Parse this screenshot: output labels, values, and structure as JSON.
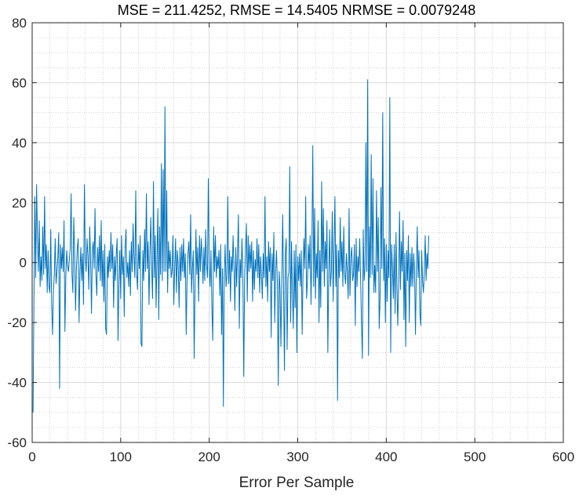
{
  "chart_data": {
    "type": "line",
    "title": "MSE = 211.4252, RMSE = 14.5405 NRMSE = 0.0079248",
    "xlabel": "Error Per Sample",
    "ylabel": "",
    "xlim": [
      0,
      600
    ],
    "ylim": [
      -60,
      80
    ],
    "grid": true,
    "minor_grid": true,
    "legend": "none",
    "x_ticks": [
      "0",
      "100",
      "200",
      "300",
      "400",
      "500",
      "600"
    ],
    "y_ticks": [
      "-60",
      "-40",
      "-20",
      "0",
      "20",
      "40",
      "60",
      "80"
    ],
    "series": [
      {
        "color": "#0072BD",
        "x_start": 1,
        "x_step": 1,
        "values": [
          -50,
          -12,
          22,
          -5,
          26,
          8,
          -3,
          14,
          -8,
          2,
          -6,
          12,
          -4,
          22,
          -2,
          6,
          -10,
          4,
          -8,
          -10,
          11,
          -14,
          -24,
          -10,
          -4,
          8,
          -7,
          -3,
          2,
          10,
          -42,
          6,
          -2,
          5,
          -3,
          14,
          -23,
          -5,
          4,
          -1,
          -3,
          1,
          5,
          23,
          -4,
          -10,
          15,
          3,
          -16,
          -2,
          5,
          8,
          -20,
          -3,
          5,
          -6,
          3,
          -14,
          26,
          2,
          -3,
          8,
          2,
          -9,
          12,
          1,
          -17,
          4,
          7,
          -2,
          18,
          -4,
          -11,
          5,
          -3,
          9,
          -6,
          14,
          -8,
          4,
          -13,
          6,
          -22,
          -24,
          2,
          -5,
          4,
          -3,
          10,
          -2,
          6,
          -15,
          2,
          -6,
          3,
          8,
          -26,
          -7,
          4,
          -12,
          9,
          -4,
          2,
          -18,
          5,
          11,
          -5,
          0,
          -8,
          4,
          -11,
          7,
          -3,
          13,
          2,
          -5,
          24,
          -3,
          -9,
          6,
          -2,
          9,
          -27,
          -28,
          4,
          -6,
          11,
          -3,
          23,
          -2,
          7,
          -14,
          3,
          15,
          -2,
          -12,
          27,
          -5,
          9,
          -15,
          1,
          18,
          -19,
          12,
          -4,
          33,
          -6,
          31,
          -3,
          52,
          -3,
          24,
          -10,
          7,
          -2,
          4,
          -5,
          -3,
          9,
          -14,
          -2,
          8,
          -10,
          4,
          -1,
          -15,
          5,
          -6,
          6,
          -3,
          8,
          -5,
          3,
          -24,
          -5,
          3,
          7,
          -4,
          16,
          -10,
          -2,
          4,
          -32,
          -8,
          11,
          -4,
          5,
          -13,
          9,
          -3,
          8,
          2,
          -7,
          5,
          -6,
          11,
          -1,
          -5,
          28,
          -2,
          -8,
          4,
          -15,
          -26,
          12,
          -3,
          9,
          -5,
          2,
          -2,
          4,
          -11,
          6,
          -24,
          -2,
          -48,
          -5,
          6,
          -8,
          -4,
          22,
          -7,
          4,
          -13,
          2,
          -3,
          9,
          -2,
          -16,
          5,
          -8,
          3,
          16,
          -22,
          1,
          -5,
          8,
          -4,
          -38,
          -5,
          4,
          13,
          -13,
          9,
          -3,
          6,
          -2,
          7,
          -13,
          4,
          -9,
          1,
          -3,
          8,
          -5,
          6,
          -10,
          2,
          -4,
          -12,
          3,
          -5,
          22,
          -8,
          2,
          -13,
          7,
          -3,
          5,
          -25,
          3,
          -6,
          10,
          -20,
          -3,
          4,
          -7,
          -41,
          -3,
          -9,
          -28,
          -5,
          16,
          -9,
          -36,
          3,
          8,
          -29,
          -5,
          -3,
          32,
          -20,
          7,
          -10,
          -22,
          4,
          -15,
          6,
          -30,
          2,
          -6,
          3,
          -8,
          4,
          -24,
          -3,
          8,
          -2,
          22,
          -12,
          -6,
          6,
          -2,
          9,
          -14,
          5,
          39,
          -8,
          18,
          -12,
          3,
          -5,
          14,
          -20,
          4,
          -15,
          27,
          -3,
          18,
          -8,
          7,
          -2,
          14,
          -30,
          -5,
          11,
          -8,
          -3,
          17,
          -13,
          4,
          22,
          -8,
          6,
          -46,
          4,
          -5,
          15,
          -3,
          7,
          -8,
          12,
          -4,
          -7,
          3,
          -3,
          -12,
          18,
          -11,
          2,
          5,
          -6,
          -4,
          6,
          -21,
          8,
          -8,
          2,
          -3,
          8,
          -5,
          -20,
          -32,
          11,
          -6,
          -2,
          40,
          -3,
          61,
          -31,
          12,
          -5,
          36,
          -4,
          28,
          -10,
          -1,
          -10,
          24,
          -3,
          15,
          -22,
          -12,
          25,
          -2,
          50,
          -6,
          8,
          -20,
          6,
          -13,
          4,
          -5,
          55,
          -30,
          6,
          -2,
          -12,
          6,
          -17,
          10,
          -8,
          -21,
          -6,
          17,
          -9,
          7,
          -3,
          14,
          -19,
          3,
          -28,
          4,
          -6,
          9,
          -20,
          3,
          -8,
          5,
          -8,
          3,
          -3,
          -24,
          -2,
          12,
          -5,
          4,
          -17,
          -21,
          4,
          -6,
          -10,
          -3,
          9,
          -6,
          3,
          -2,
          9
        ]
      }
    ]
  }
}
